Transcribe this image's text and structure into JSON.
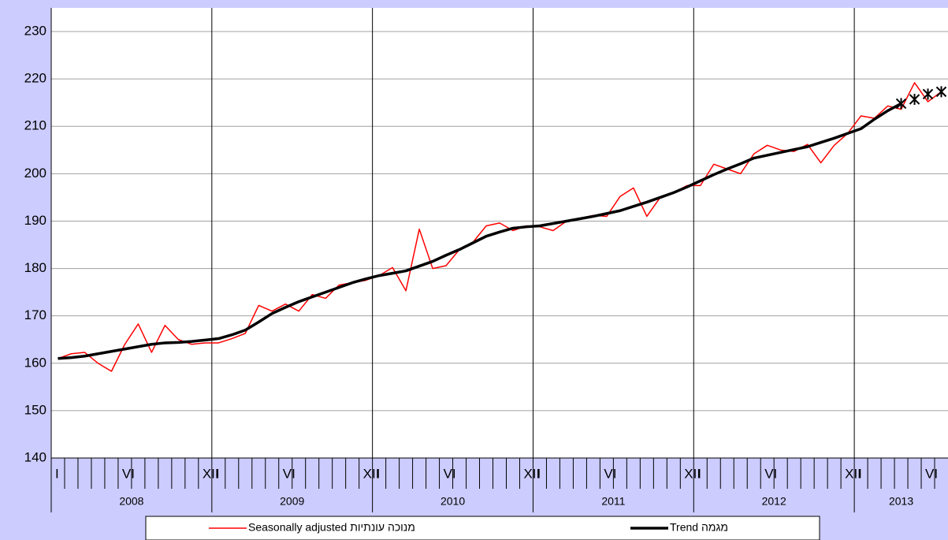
{
  "chart_data": {
    "type": "line",
    "categories": [
      "I",
      null,
      null,
      null,
      null,
      "VI",
      null,
      null,
      null,
      null,
      null,
      "XII",
      "I",
      null,
      null,
      null,
      null,
      "VI",
      null,
      null,
      null,
      null,
      null,
      "XII",
      "I",
      null,
      null,
      null,
      null,
      "VI",
      null,
      null,
      null,
      null,
      null,
      "XII",
      "I",
      null,
      null,
      null,
      null,
      "VI",
      null,
      null,
      null,
      null,
      null,
      "XII",
      "I",
      null,
      null,
      null,
      null,
      "VI",
      null,
      null,
      null,
      null,
      null,
      "XII",
      "I",
      null,
      null,
      null,
      null,
      "VI",
      null
    ],
    "years": [
      "2008",
      "2009",
      "2010",
      "2011",
      "2012",
      "2013"
    ],
    "series": [
      {
        "name": "Seasonally adjusted מנוכה עונתיות",
        "color": "#ff0000",
        "width": 1.5,
        "values": [
          161,
          162,
          162.3,
          160,
          158.3,
          164,
          168.3,
          162.3,
          168,
          165,
          164,
          164.3,
          164.3,
          165.2,
          166.3,
          172.2,
          171,
          172.5,
          171,
          174.5,
          173.7,
          176.5,
          177,
          177.5,
          178.5,
          180.2,
          175.3,
          188.3,
          180,
          180.6,
          184,
          185.5,
          189,
          189.6,
          188,
          189,
          188.8,
          188,
          190,
          190.6,
          191.2,
          191,
          195.2,
          197,
          191,
          195,
          196,
          197.5,
          197.5,
          202,
          201,
          200,
          204.2,
          206,
          205,
          204.7,
          206.2,
          202.3,
          206,
          208.5,
          212.2,
          211.7,
          214.3,
          213.6,
          219.2,
          215.2,
          217.3
        ]
      },
      {
        "name": "Trend מגמה",
        "color": "#000000",
        "width": 3.5,
        "values": [
          161,
          161.2,
          161.5,
          162,
          162.5,
          163,
          163.5,
          164,
          164.3,
          164.4,
          164.6,
          164.9,
          165.2,
          166,
          167,
          168.7,
          170.5,
          171.8,
          173,
          174,
          175,
          176,
          177,
          177.8,
          178.5,
          179,
          179.5,
          180.5,
          181.5,
          182.8,
          184,
          185.4,
          186.8,
          187.7,
          188.5,
          188.8,
          189,
          189.5,
          190,
          190.5,
          191,
          191.6,
          192.2,
          193.1,
          194,
          195,
          196,
          197.2,
          198.5,
          199.8,
          201,
          202.1,
          203.3,
          203.9,
          204.5,
          205.1,
          205.7,
          206.6,
          207.5,
          208.5,
          209.5,
          211.5,
          213.3,
          214.8,
          null,
          null,
          null
        ]
      },
      {
        "color": "#000000",
        "marker": "asterisk",
        "values": [
          null,
          null,
          null,
          null,
          null,
          null,
          null,
          null,
          null,
          null,
          null,
          null,
          null,
          null,
          null,
          null,
          null,
          null,
          null,
          null,
          null,
          null,
          null,
          null,
          null,
          null,
          null,
          null,
          null,
          null,
          null,
          null,
          null,
          null,
          null,
          null,
          null,
          null,
          null,
          null,
          null,
          null,
          null,
          null,
          null,
          null,
          null,
          null,
          null,
          null,
          null,
          null,
          null,
          null,
          null,
          null,
          null,
          null,
          null,
          null,
          null,
          null,
          null,
          214.8,
          215.7,
          216.8,
          217.3
        ]
      }
    ],
    "ylim": [
      140,
      235
    ],
    "yticks": [
      140,
      150,
      160,
      170,
      180,
      190,
      200,
      210,
      220,
      230
    ],
    "grid": true
  }
}
